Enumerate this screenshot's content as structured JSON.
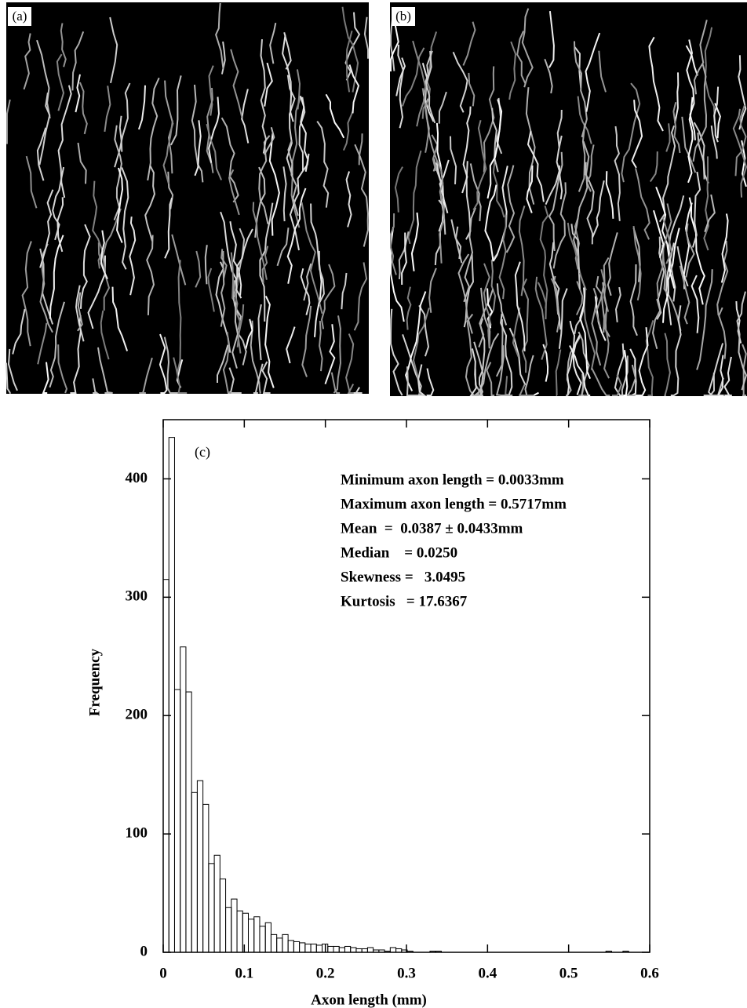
{
  "panels": [
    {
      "label": "(a)"
    },
    {
      "label": "(b)"
    }
  ],
  "chart_data": {
    "type": "histogram",
    "annotation": "(c)",
    "stats": [
      "Minimum axon length = 0.0033mm",
      "Maximum axon length = 0.5717mm",
      "Mean  =  0.0387 ± 0.0433mm",
      "Median    = 0.0250",
      "Skewness =   3.0495",
      "Kurtosis   = 17.6367"
    ],
    "x_label": "Axon length (mm)",
    "y_label": "Frequency",
    "bins": [
      0,
      0.007,
      0.014,
      0.021,
      0.028,
      0.035,
      0.042,
      0.049,
      0.056,
      0.063,
      0.07,
      0.077,
      0.084,
      0.091,
      0.098,
      0.105,
      0.112,
      0.119,
      0.126,
      0.133,
      0.14,
      0.147,
      0.154,
      0.161,
      0.168,
      0.175,
      0.182,
      0.189,
      0.196,
      0.203,
      0.21,
      0.217,
      0.224,
      0.231,
      0.238,
      0.245,
      0.252,
      0.259,
      0.266,
      0.273,
      0.28,
      0.287,
      0.294,
      0.301,
      0.308,
      0.315,
      0.322,
      0.329,
      0.336,
      0.343,
      0.35,
      0.357,
      0.364,
      0.371,
      0.378,
      0.385,
      0.392,
      0.399,
      0.406,
      0.413,
      0.42,
      0.427,
      0.434,
      0.441,
      0.448,
      0.455,
      0.462,
      0.469,
      0.476,
      0.483,
      0.49,
      0.497,
      0.504,
      0.511,
      0.518,
      0.525,
      0.532,
      0.539,
      0.546,
      0.553,
      0.56,
      0.567,
      0.574,
      0.581,
      0.588
    ],
    "values": [
      315,
      435,
      222,
      258,
      220,
      135,
      145,
      125,
      75,
      82,
      62,
      38,
      45,
      35,
      33,
      28,
      30,
      22,
      25,
      15,
      12,
      15,
      10,
      9,
      8,
      7,
      7,
      6,
      7,
      5,
      5,
      4,
      5,
      4,
      3,
      3,
      4,
      2,
      2,
      1,
      4,
      3,
      2,
      1,
      0,
      0,
      0,
      1,
      1,
      0,
      0,
      0,
      0,
      0,
      0,
      0,
      0,
      0,
      0,
      0,
      0,
      0,
      0,
      0,
      0,
      0,
      0,
      0,
      0,
      0,
      0,
      0,
      0,
      0,
      0,
      0,
      0,
      0,
      1,
      0,
      0,
      1,
      0,
      0
    ],
    "color": "#000000",
    "xlim": [
      0,
      0.6
    ],
    "xticks": [
      0,
      0.1,
      0.2,
      0.3,
      0.4,
      0.5,
      0.6
    ],
    "ylim": [
      0,
      450
    ],
    "yticks": [
      0,
      100,
      200,
      300,
      400
    ]
  }
}
